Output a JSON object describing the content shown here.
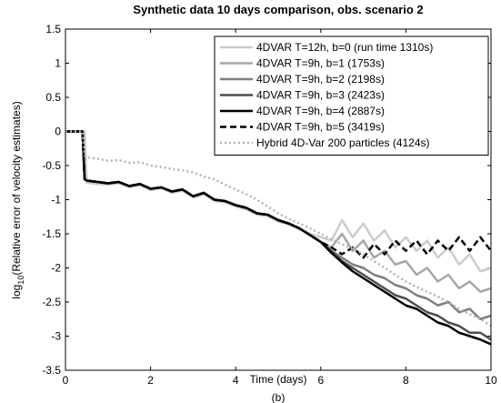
{
  "chart_data": {
    "type": "line",
    "title": "Synthetic data 10 days comparison, obs. scenario 2",
    "xlabel": "Time (days)",
    "ylabel": [
      "log",
      "10",
      "(Relative error of velocity estimates)"
    ],
    "caption": "(b)",
    "xlim": [
      0,
      10
    ],
    "ylim": [
      -3.5,
      1.5
    ],
    "xticks": [
      0,
      2,
      4,
      6,
      8,
      10
    ],
    "yticks": [
      1.5,
      1,
      0.5,
      0,
      -0.5,
      -1,
      -1.5,
      -2,
      -2.5,
      -3,
      -3.5
    ],
    "legend": "upper right",
    "x": [
      0,
      0.4,
      0.45,
      0.5,
      0.75,
      1,
      1.25,
      1.5,
      1.75,
      2,
      2.25,
      2.5,
      2.75,
      3,
      3.25,
      3.5,
      3.75,
      4,
      4.25,
      4.5,
      4.75,
      5,
      5.25,
      5.5,
      5.75,
      6,
      6.25,
      6.5,
      6.75,
      7,
      7.25,
      7.5,
      7.75,
      8,
      8.25,
      8.5,
      8.75,
      9,
      9.25,
      9.5,
      9.75,
      10
    ],
    "series": [
      {
        "name": "4DVAR T=12h, b=0 (run time 1310s)",
        "color": "#cccccc",
        "linestyle": "solid",
        "values": [
          0,
          0,
          0,
          -0.75,
          -0.77,
          -0.78,
          -0.76,
          -0.82,
          -0.79,
          -0.86,
          -0.83,
          -0.9,
          -0.87,
          -0.97,
          -0.92,
          -1.02,
          -1.04,
          -1.1,
          -1.14,
          -1.22,
          -1.24,
          -1.32,
          -1.36,
          -1.44,
          -1.5,
          -1.55,
          -1.6,
          -1.3,
          -1.55,
          -1.35,
          -1.6,
          -1.45,
          -1.7,
          -1.55,
          -1.75,
          -1.6,
          -1.85,
          -1.7,
          -1.95,
          -1.8,
          -2.05,
          -2.0
        ]
      },
      {
        "name": "4DVAR T=9h, b=1 (1753s)",
        "color": "#a6a6a6",
        "linestyle": "solid",
        "values": [
          0,
          0,
          -0.7,
          -0.72,
          -0.74,
          -0.76,
          -0.74,
          -0.8,
          -0.77,
          -0.84,
          -0.82,
          -0.88,
          -0.85,
          -0.95,
          -0.9,
          -1.0,
          -1.02,
          -1.08,
          -1.12,
          -1.2,
          -1.22,
          -1.3,
          -1.35,
          -1.42,
          -1.52,
          -1.62,
          -1.7,
          -1.5,
          -1.75,
          -1.6,
          -1.85,
          -1.75,
          -1.95,
          -1.9,
          -2.1,
          -2.0,
          -2.2,
          -2.1,
          -2.3,
          -2.2,
          -2.35,
          -2.3
        ]
      },
      {
        "name": "4DVAR T=9h, b=2 (2198s)",
        "color": "#7f7f7f",
        "linestyle": "solid",
        "values": [
          0,
          0,
          -0.7,
          -0.72,
          -0.74,
          -0.76,
          -0.74,
          -0.8,
          -0.77,
          -0.84,
          -0.82,
          -0.88,
          -0.85,
          -0.95,
          -0.9,
          -1.0,
          -1.02,
          -1.08,
          -1.12,
          -1.2,
          -1.22,
          -1.3,
          -1.35,
          -1.42,
          -1.52,
          -1.62,
          -1.75,
          -1.85,
          -1.95,
          -2.0,
          -2.1,
          -2.15,
          -2.25,
          -2.3,
          -2.4,
          -2.45,
          -2.55,
          -2.5,
          -2.65,
          -2.6,
          -2.75,
          -2.7
        ]
      },
      {
        "name": "4DVAR T=9h, b=3 (2423s)",
        "color": "#4d4d4d",
        "linestyle": "solid",
        "values": [
          0,
          0,
          -0.7,
          -0.72,
          -0.74,
          -0.76,
          -0.74,
          -0.8,
          -0.77,
          -0.84,
          -0.82,
          -0.88,
          -0.85,
          -0.95,
          -0.9,
          -1.0,
          -1.02,
          -1.08,
          -1.12,
          -1.2,
          -1.22,
          -1.3,
          -1.35,
          -1.42,
          -1.52,
          -1.62,
          -1.75,
          -1.9,
          -2.0,
          -2.1,
          -2.2,
          -2.3,
          -2.4,
          -2.45,
          -2.55,
          -2.65,
          -2.7,
          -2.8,
          -2.85,
          -2.95,
          -2.95,
          -3.05
        ]
      },
      {
        "name": "4DVAR T=9h, b=4 (2887s)",
        "color": "#000000",
        "linestyle": "solid",
        "values": [
          0,
          0,
          -0.7,
          -0.72,
          -0.74,
          -0.76,
          -0.74,
          -0.8,
          -0.77,
          -0.84,
          -0.82,
          -0.88,
          -0.85,
          -0.95,
          -0.9,
          -1.0,
          -1.02,
          -1.08,
          -1.12,
          -1.2,
          -1.22,
          -1.3,
          -1.35,
          -1.42,
          -1.52,
          -1.62,
          -1.78,
          -1.92,
          -2.05,
          -2.15,
          -2.25,
          -2.35,
          -2.45,
          -2.55,
          -2.6,
          -2.7,
          -2.8,
          -2.85,
          -2.95,
          -3.0,
          -3.05,
          -3.12
        ]
      },
      {
        "name": "4DVAR T=9h, b=5 (3419s)",
        "color": "#000000",
        "linestyle": "dashed",
        "values": [
          0,
          0,
          -0.7,
          -0.72,
          -0.74,
          -0.76,
          -0.74,
          -0.8,
          -0.77,
          -0.84,
          -0.82,
          -0.88,
          -0.85,
          -0.95,
          -0.9,
          -1.0,
          -1.02,
          -1.08,
          -1.12,
          -1.2,
          -1.22,
          -1.3,
          -1.35,
          -1.42,
          -1.52,
          -1.62,
          -1.7,
          -1.8,
          -1.7,
          -1.85,
          -1.65,
          -1.8,
          -1.6,
          -1.75,
          -1.6,
          -1.8,
          -1.6,
          -1.75,
          -1.55,
          -1.75,
          -1.55,
          -1.75
        ]
      },
      {
        "name": "Hybrid 4D-Var 200 particles (4124s)",
        "color": "#b3b3b3",
        "linestyle": "dotted",
        "values": [
          0,
          0,
          -0.35,
          -0.38,
          -0.4,
          -0.43,
          -0.42,
          -0.46,
          -0.45,
          -0.5,
          -0.52,
          -0.55,
          -0.57,
          -0.6,
          -0.66,
          -0.7,
          -0.78,
          -0.85,
          -0.92,
          -1.0,
          -1.1,
          -1.2,
          -1.28,
          -1.35,
          -1.42,
          -1.5,
          -1.58,
          -1.65,
          -1.72,
          -1.8,
          -1.9,
          -2.0,
          -2.1,
          -2.2,
          -2.28,
          -2.35,
          -2.42,
          -2.5,
          -2.6,
          -2.68,
          -2.75,
          -2.85
        ]
      }
    ]
  }
}
